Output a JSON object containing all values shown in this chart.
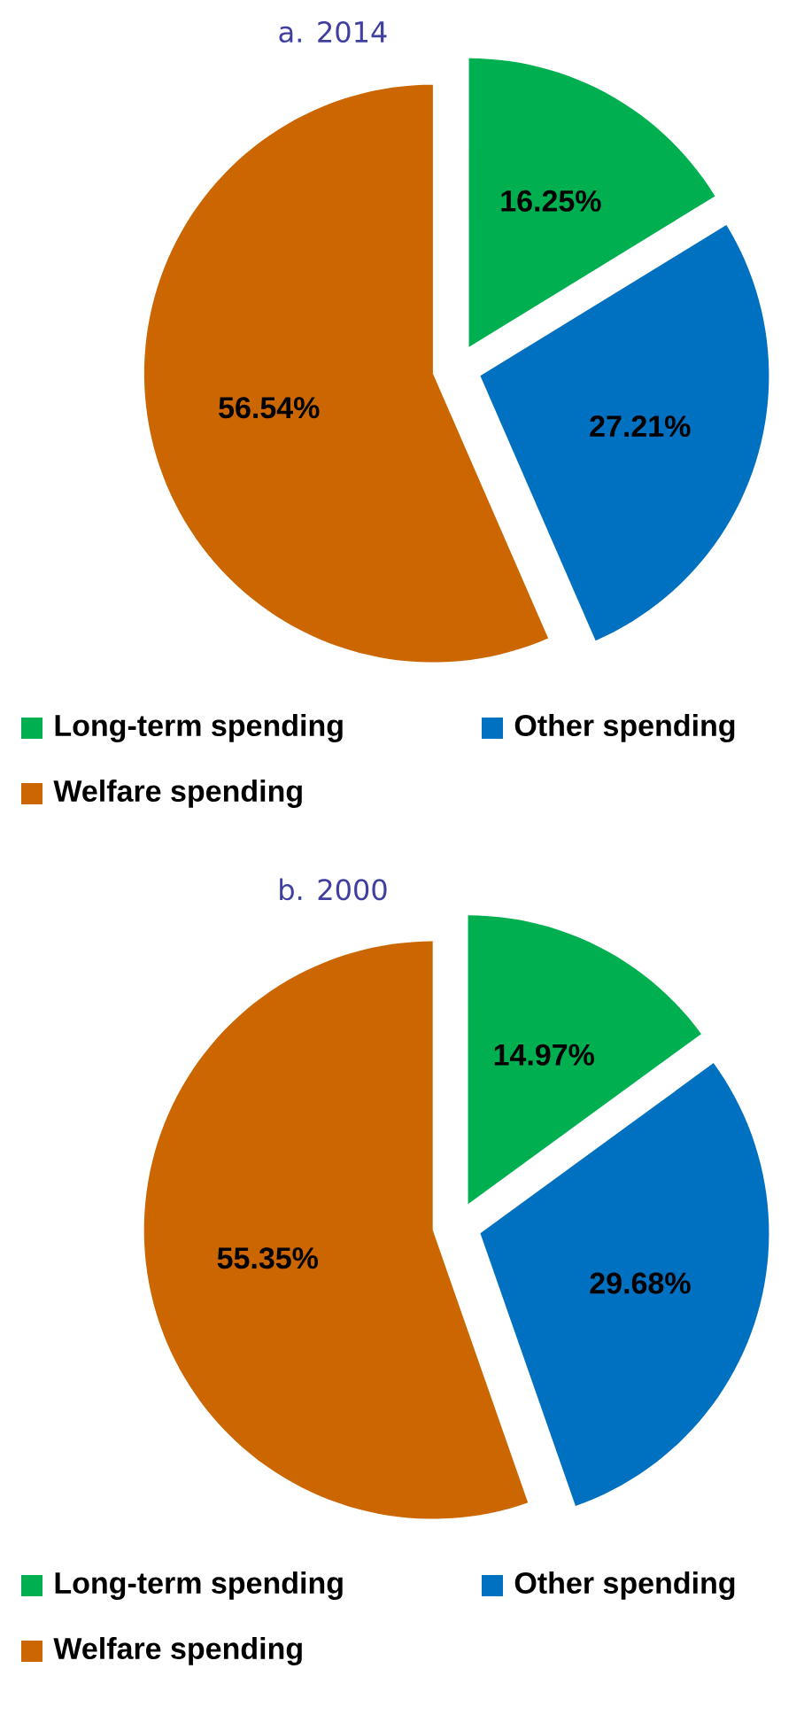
{
  "chart_data": [
    {
      "type": "pie",
      "title": "a. 2014",
      "categories": [
        "Long-term spending",
        "Other spending",
        "Welfare spending"
      ],
      "values": [
        16.25,
        27.21,
        56.54
      ],
      "value_labels": [
        "16.25%",
        "27.21%",
        "56.54%"
      ],
      "colors": [
        "#00b050",
        "#0070c0",
        "#cc6600"
      ],
      "legend": "bottom"
    },
    {
      "type": "pie",
      "title": "b. 2000",
      "categories": [
        "Long-term spending",
        "Other spending",
        "Welfare spending"
      ],
      "values": [
        14.97,
        29.68,
        55.35
      ],
      "value_labels": [
        "14.97%",
        "29.68%",
        "55.35%"
      ],
      "colors": [
        "#00b050",
        "#0070c0",
        "#cc6600"
      ],
      "legend": "bottom"
    }
  ]
}
